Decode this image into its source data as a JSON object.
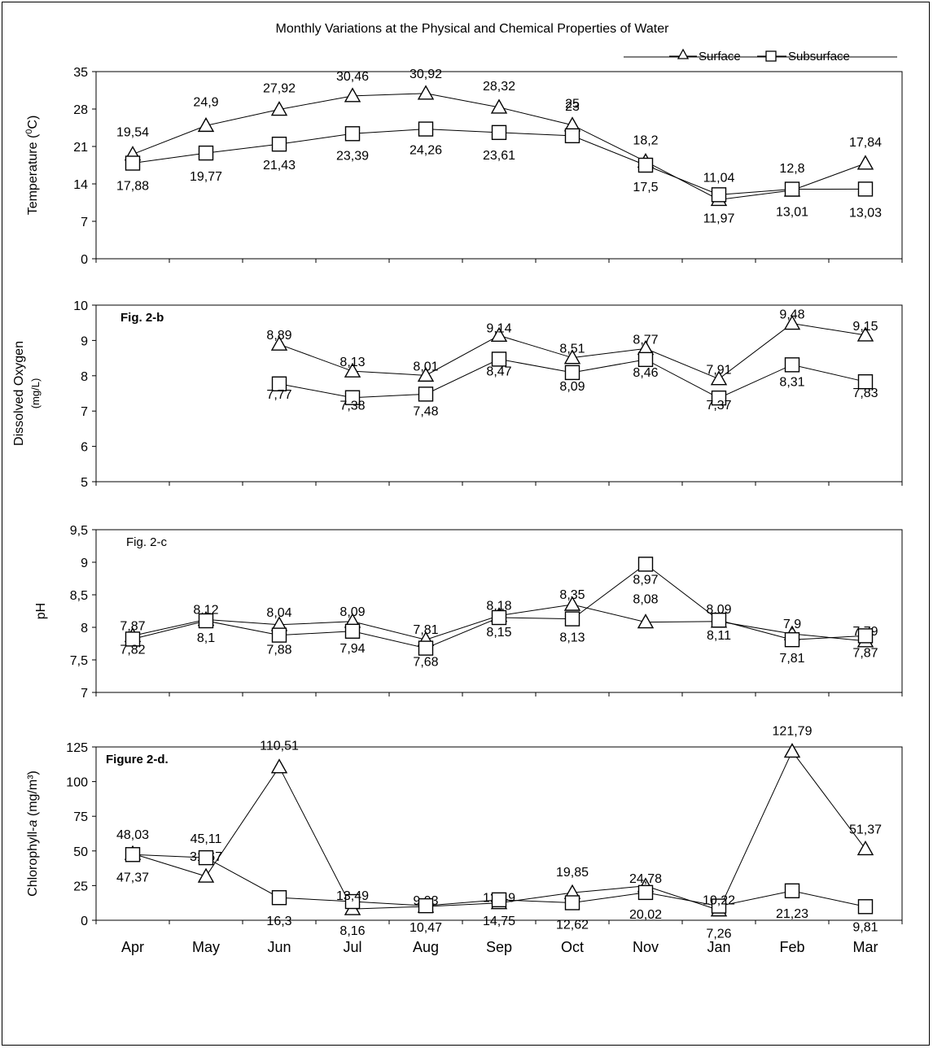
{
  "title": "Monthly Variations at the Physical and Chemical Properties of Water",
  "legend": {
    "surface": "Surface",
    "subsurface": "Subsurface"
  },
  "chart_data": [
    {
      "type": "line",
      "panel_label": "",
      "categories": [
        "Apr",
        "May",
        "Jun",
        "Jul",
        "Aug",
        "Sep",
        "Oct",
        "Nov",
        "Jan",
        "Feb",
        "Mar"
      ],
      "ylabel": "Temperature (⁰C)",
      "ylabel_parts": [
        "Temperature (",
        "0",
        "C)"
      ],
      "ylim": [
        0,
        35
      ],
      "yticks": [
        "0",
        "7",
        "14",
        "21",
        "28",
        "35"
      ],
      "series": [
        {
          "name": "Surface",
          "marker": "triangle",
          "values": [
            19.54,
            24.9,
            27.92,
            30.46,
            30.92,
            28.32,
            25,
            18.2,
            11.04,
            12.8,
            17.84
          ],
          "labels": [
            "19,54",
            "24,9",
            "27,92",
            "30,46",
            "30,92",
            "28,32",
            "25",
            "18,2",
            "11,04",
            "12,8",
            "17,84"
          ]
        },
        {
          "name": "Subsurface",
          "marker": "square",
          "values": [
            17.88,
            19.77,
            21.43,
            23.39,
            24.26,
            23.61,
            23,
            17.5,
            11.97,
            13.01,
            13.03
          ],
          "labels": [
            "17,88",
            "19,77",
            "21,43",
            "23,39",
            "24,26",
            "23,61",
            "23",
            "17,5",
            "11,97",
            "13,01",
            "13,03"
          ]
        }
      ]
    },
    {
      "type": "line",
      "panel_label": "Fig. 2-b",
      "categories": [
        "Apr",
        "May",
        "Jun",
        "Jul",
        "Aug",
        "Sep",
        "Oct",
        "Nov",
        "Jan",
        "Feb",
        "Mar"
      ],
      "ylabel": "Dissolved Oxygen",
      "ylabel_sub": "(mg/L)",
      "ylim": [
        5,
        10
      ],
      "yticks": [
        "5",
        "6",
        "7",
        "8",
        "9",
        "10"
      ],
      "series": [
        {
          "name": "Surface",
          "marker": "triangle",
          "values": [
            null,
            null,
            8.89,
            8.13,
            8.01,
            9.14,
            8.51,
            8.77,
            7.91,
            9.48,
            9.15
          ],
          "labels": [
            "",
            "",
            "8,89",
            "8,13",
            "8,01",
            "9,14",
            "8,51",
            "8,77",
            "7,91",
            "9,48",
            "9,15"
          ]
        },
        {
          "name": "Subsurface",
          "marker": "square",
          "values": [
            null,
            null,
            7.77,
            7.38,
            7.48,
            8.47,
            8.09,
            8.46,
            7.37,
            8.31,
            7.83
          ],
          "labels": [
            "",
            "",
            "7,77",
            "7,38",
            "7,48",
            "8,47",
            "8,09",
            "8,46",
            "7,37",
            "8,31",
            "7,83"
          ]
        }
      ]
    },
    {
      "type": "line",
      "panel_label": "Fig. 2-c",
      "categories": [
        "Apr",
        "May",
        "Jun",
        "Jul",
        "Aug",
        "Sep",
        "Oct",
        "Nov",
        "Jan",
        "Feb",
        "Mar"
      ],
      "ylabel": "pH",
      "ylim": [
        7,
        9.5
      ],
      "yticks": [
        "7",
        "7,5",
        "8",
        "8,5",
        "9",
        "9,5"
      ],
      "series": [
        {
          "name": "Surface",
          "marker": "triangle",
          "values": [
            7.87,
            8.12,
            8.04,
            8.09,
            7.81,
            8.18,
            8.35,
            8.08,
            8.09,
            7.9,
            7.79
          ],
          "labels": [
            "7,87",
            "8,12",
            "8,04",
            "8,09",
            "7,81",
            "8,18",
            "8,35",
            "8,08",
            "8,09",
            "7,9",
            "7,79"
          ]
        },
        {
          "name": "Subsurface",
          "marker": "square",
          "values": [
            7.82,
            8.1,
            7.88,
            7.94,
            7.68,
            8.15,
            8.13,
            8.97,
            8.11,
            7.81,
            7.87
          ],
          "labels": [
            "7,82",
            "8,1",
            "7,88",
            "7,94",
            "7,68",
            "8,15",
            "8,13",
            "8,97",
            "8,11",
            "7,81",
            "7,87"
          ]
        }
      ]
    },
    {
      "type": "line",
      "panel_label": "Figure 2-d.",
      "categories": [
        "Apr",
        "May",
        "Jun",
        "Jul",
        "Aug",
        "Sep",
        "Oct",
        "Nov",
        "Jan",
        "Feb",
        "Mar"
      ],
      "ylabel": "Chlorophyll-a (mg/m³)",
      "ylabel_parts": [
        "Chlorophyll-",
        "a",
        " (mg/m³)"
      ],
      "ylim": [
        0,
        125
      ],
      "yticks": [
        "0",
        "25",
        "50",
        "75",
        "100",
        "125"
      ],
      "series": [
        {
          "name": "Surface",
          "marker": "triangle",
          "values": [
            48.03,
            31.67,
            110.51,
            8.16,
            9.93,
            12.49,
            19.85,
            24.78,
            7.26,
            121.79,
            51.37
          ],
          "labels": [
            "48,03",
            "31,67",
            "110,51",
            "8,16",
            "9,93",
            "12,49",
            "19,85",
            "24,78",
            "7,26",
            "121,79",
            "51,37"
          ]
        },
        {
          "name": "Subsurface",
          "marker": "square",
          "values": [
            47.37,
            45.11,
            16.3,
            13.49,
            10.47,
            14.75,
            12.62,
            20.02,
            10.22,
            21.23,
            9.81
          ],
          "labels": [
            "47,37",
            "45,11",
            "16,3",
            "13,49",
            "10,47",
            "14,75",
            "12,62",
            "20,02",
            "10,22",
            "21,23",
            "9,81"
          ]
        }
      ]
    }
  ]
}
